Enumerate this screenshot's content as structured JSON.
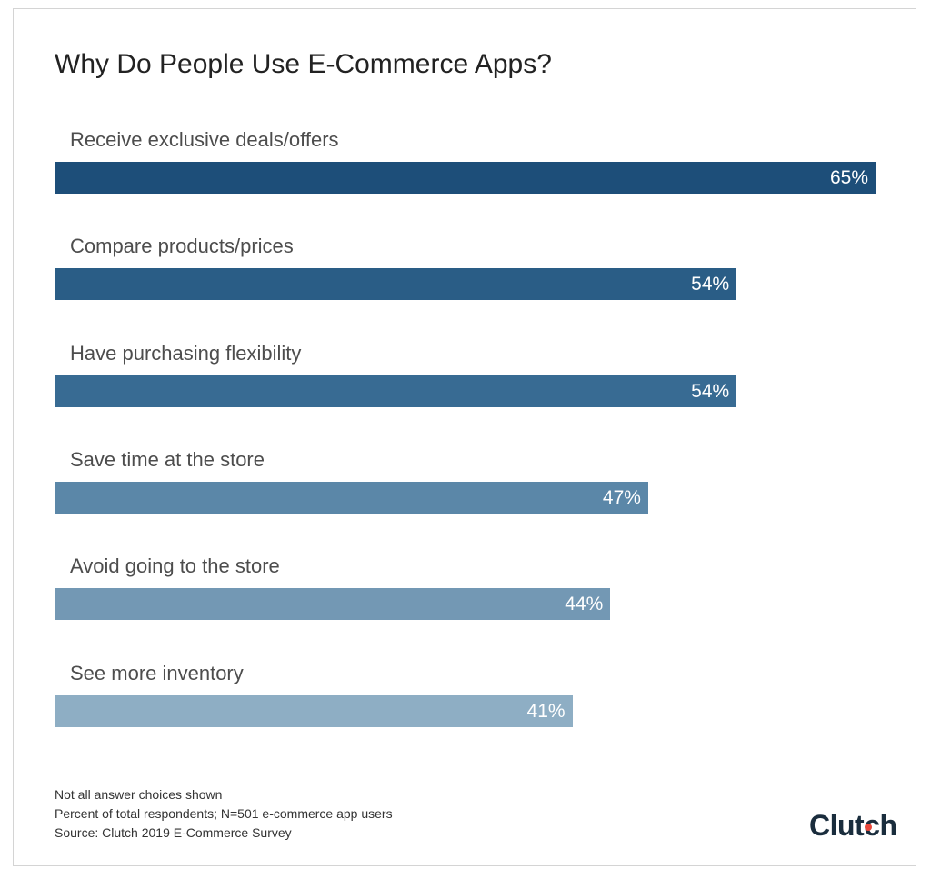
{
  "chart_data": {
    "type": "bar",
    "orientation": "horizontal",
    "title": "Why Do People Use E-Commerce Apps?",
    "xlabel": "",
    "ylabel": "",
    "categories": [
      "Receive exclusive deals/offers",
      "Compare products/prices",
      "Have purchasing flexibility",
      "Save time at the store",
      "Avoid going to the store",
      "See more inventory"
    ],
    "values": [
      65,
      54,
      54,
      47,
      44,
      41
    ],
    "value_labels": [
      "65%",
      "54%",
      "54%",
      "47%",
      "44%",
      "41%"
    ],
    "xlim": [
      0,
      65
    ],
    "grid": false,
    "legend": "none",
    "bar_colors": [
      "#1d4e79",
      "#2a5d86",
      "#386b93",
      "#5b87a8",
      "#7398b4",
      "#8eaec4"
    ]
  },
  "notes": [
    "Not all answer choices shown",
    "Percent of total respondents; N=501 e-commerce app users",
    "Source: Clutch 2019 E-Commerce Survey"
  ],
  "logo": {
    "text": "Clutch",
    "accent_color": "#e8473a"
  }
}
